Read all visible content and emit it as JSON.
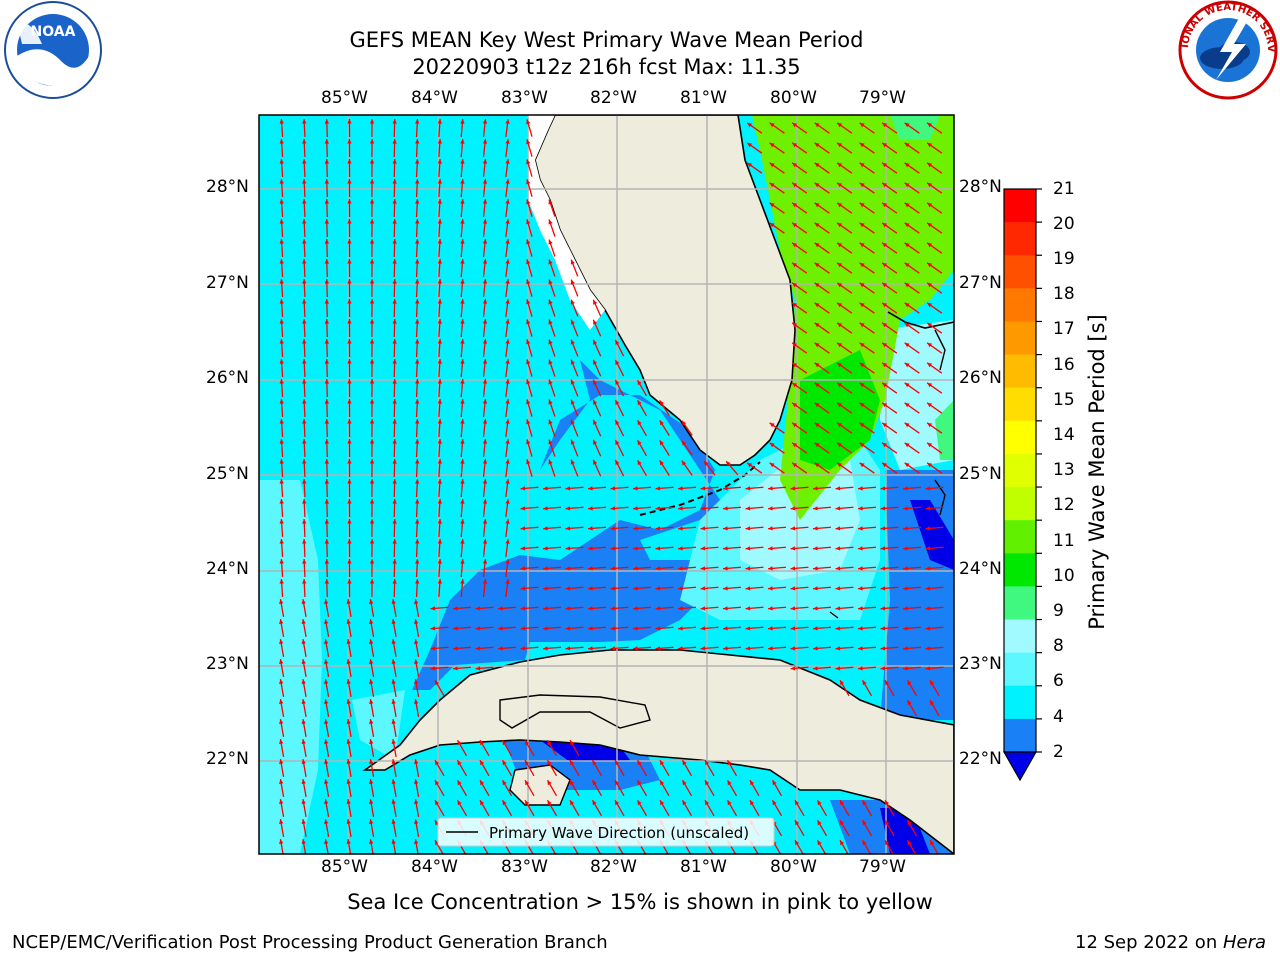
{
  "header": {
    "title_line1": "GEFS MEAN Key West Primary Wave Mean Period",
    "title_line2": "20220903 t12z 216h fcst   Max: 11.35"
  },
  "logos": {
    "noaa_text": "NOAA",
    "noaa_ring": "NATIONAL OCEANIC AND ATMOSPHERIC ADMINISTRATION · U.S. DEPARTMENT OF COMMERCE",
    "nws_ring": "NATIONAL WEATHER SERVICE"
  },
  "map": {
    "lon_labels": [
      "85°W",
      "84°W",
      "83°W",
      "82°W",
      "81°W",
      "80°W",
      "79°W"
    ],
    "lat_labels": [
      "28°N",
      "27°N",
      "26°N",
      "25°N",
      "24°N",
      "23°N",
      "22°N"
    ],
    "legend_label": "Primary Wave Direction (unscaled)",
    "colors": {
      "land": "#eeecdd",
      "cyan": "#00f2ff",
      "light_cyan": "#5cf7ff",
      "pale_cyan": "#a0faff",
      "blue": "#1a80f5",
      "deep_blue": "#0000e8",
      "green": "#00e800",
      "lime": "#6ef000",
      "arrow": "#ff0000"
    }
  },
  "colorbar": {
    "label": "Primary Wave Mean Period [s]",
    "ticks": [
      "21",
      "20",
      "19",
      "18",
      "17",
      "16",
      "15",
      "14",
      "13",
      "12",
      "11",
      "10",
      "9",
      "8",
      "6",
      "4",
      "2"
    ],
    "colors": [
      "#ff0000",
      "#ff2800",
      "#ff5000",
      "#ff7800",
      "#ff9900",
      "#ffbb00",
      "#ffdd00",
      "#ffff00",
      "#e0ff00",
      "#c0ff00",
      "#60f000",
      "#00e800",
      "#40f880",
      "#a0faff",
      "#5cf7ff",
      "#00f2ff",
      "#1a80f5"
    ],
    "extend_color": "#0000e8"
  },
  "footer": {
    "ice_note": "Sea Ice Concentration > 15% is shown in pink to yellow",
    "credit": "NCEP/EMC/Verification Post Processing Product Generation Branch",
    "date": "12 Sep 2022 on ",
    "machine": "Hera"
  }
}
